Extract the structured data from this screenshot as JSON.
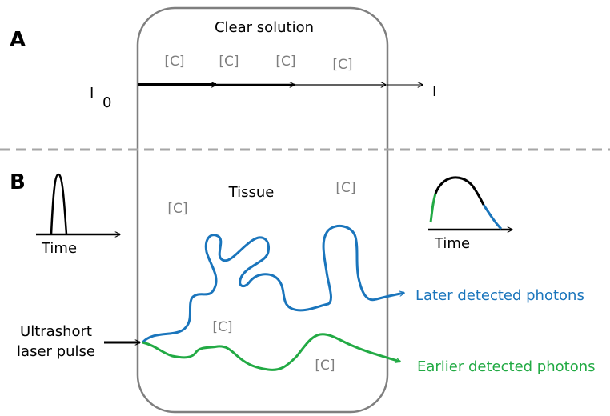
{
  "panel_a": {
    "label": "A",
    "title": "Clear solution",
    "concentration_labels": [
      "[C]",
      "[C]",
      "[C]",
      "[C]"
    ],
    "incident": {
      "symbol": "I",
      "subscript": "0"
    },
    "transmitted": "I"
  },
  "panel_b": {
    "label": "B",
    "title": "Tissue",
    "concentration_labels": [
      "[C]",
      "[C]",
      "[C]",
      "[C]"
    ],
    "input_axis": "Time",
    "output_axis": "Time",
    "source": [
      "Ultrashort",
      "laser pulse"
    ],
    "later": "Later detected photons",
    "earlier": "Earlier detected photons"
  }
}
